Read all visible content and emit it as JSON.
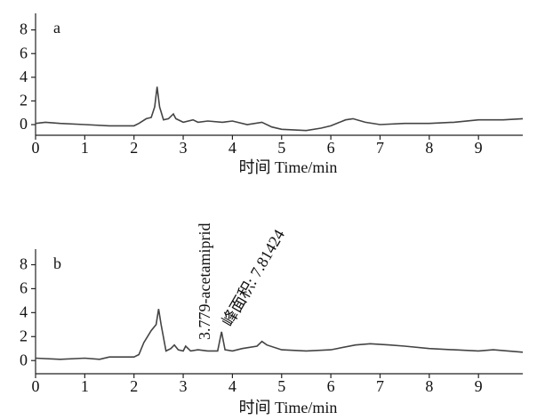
{
  "chart_data": [
    {
      "type": "line",
      "label": "a",
      "xlabel": "时间 Time/min",
      "color": "#444444",
      "x": [
        0,
        0.2,
        0.5,
        1,
        1.5,
        2,
        2.1,
        2.25,
        2.35,
        2.42,
        2.47,
        2.52,
        2.6,
        2.7,
        2.8,
        2.85,
        3,
        3.2,
        3.3,
        3.5,
        3.8,
        4,
        4.3,
        4.6,
        4.8,
        5,
        5.5,
        5.8,
        6,
        6.3,
        6.45,
        6.7,
        7,
        7.5,
        8,
        8.5,
        9,
        9.5,
        9.9
      ],
      "values": [
        0.1,
        0.2,
        0.1,
        0.0,
        -0.1,
        -0.1,
        0.1,
        0.5,
        0.6,
        1.5,
        3.2,
        1.5,
        0.4,
        0.5,
        0.9,
        0.5,
        0.2,
        0.4,
        0.2,
        0.3,
        0.2,
        0.3,
        0.0,
        0.2,
        -0.2,
        -0.4,
        -0.5,
        -0.3,
        -0.1,
        0.4,
        0.5,
        0.2,
        0.0,
        0.1,
        0.1,
        0.2,
        0.4,
        0.4,
        0.5
      ],
      "xlim": [
        0,
        9.9
      ],
      "ylim": [
        -0.9,
        9.4
      ],
      "xticks": [
        0,
        1,
        2,
        3,
        4,
        5,
        6,
        7,
        8,
        9
      ],
      "yticks": [
        0,
        2,
        4,
        6,
        8
      ]
    },
    {
      "type": "line",
      "label": "b",
      "xlabel": "时间 Time/min",
      "color": "#444444",
      "x": [
        0,
        0.5,
        1,
        1.3,
        1.5,
        2,
        2.1,
        2.2,
        2.35,
        2.45,
        2.5,
        2.55,
        2.65,
        2.75,
        2.82,
        2.9,
        3.0,
        3.05,
        3.15,
        3.3,
        3.5,
        3.7,
        3.78,
        3.85,
        4,
        4.2,
        4.5,
        4.6,
        4.7,
        5,
        5.5,
        6,
        6.5,
        6.8,
        7.2,
        7.5,
        8,
        8.5,
        9,
        9.3,
        9.9
      ],
      "values": [
        0.2,
        0.1,
        0.2,
        0.1,
        0.3,
        0.3,
        0.5,
        1.5,
        2.5,
        3.0,
        4.3,
        3.0,
        0.8,
        1.0,
        1.3,
        0.9,
        0.8,
        1.2,
        0.8,
        0.9,
        0.8,
        0.8,
        2.4,
        0.9,
        0.8,
        1.0,
        1.2,
        1.6,
        1.3,
        0.9,
        0.8,
        0.9,
        1.3,
        1.4,
        1.3,
        1.2,
        1.0,
        0.9,
        0.8,
        0.9,
        0.7
      ],
      "xlim": [
        0,
        9.9
      ],
      "ylim": [
        -1.1,
        9.3
      ],
      "xticks": [
        0,
        1,
        2,
        3,
        4,
        5,
        6,
        7,
        8,
        9
      ],
      "yticks": [
        0,
        2,
        4,
        6,
        8
      ],
      "annotations": [
        "3.779-acetamiprid",
        "峰面积: 7.81424"
      ]
    }
  ]
}
